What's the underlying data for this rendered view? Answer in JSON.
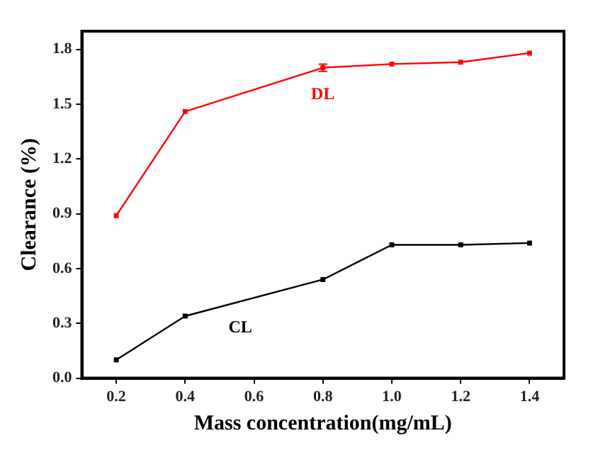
{
  "chart_data": {
    "type": "line",
    "xlabel": "Mass concentration(mg/mL)",
    "ylabel": "Clearance (%)",
    "x": [
      0.2,
      0.4,
      0.8,
      1.0,
      1.2,
      1.4
    ],
    "series": [
      {
        "name": "DL",
        "color": "#ff0000",
        "values": [
          0.89,
          1.46,
          1.7,
          1.72,
          1.73,
          1.78
        ],
        "errors": [
          null,
          null,
          0.02,
          null,
          null,
          null
        ]
      },
      {
        "name": "CL",
        "color": "#000000",
        "values": [
          0.1,
          0.34,
          0.54,
          0.73,
          0.73,
          0.74
        ]
      }
    ],
    "xlim": [
      0.1,
      1.5
    ],
    "xticks": [
      0.2,
      0.4,
      0.6,
      0.8,
      {
        "value": 1,
        "label": "1.0"
      },
      1.2,
      1.4
    ],
    "ylim": [
      0,
      1.9
    ],
    "yticks": [
      {
        "value": 0,
        "label": "0.0"
      },
      0.3,
      0.6,
      0.9,
      1.2,
      1.5,
      1.8
    ],
    "marker": "square",
    "line_style": "solid",
    "grid": false,
    "legend": false
  }
}
